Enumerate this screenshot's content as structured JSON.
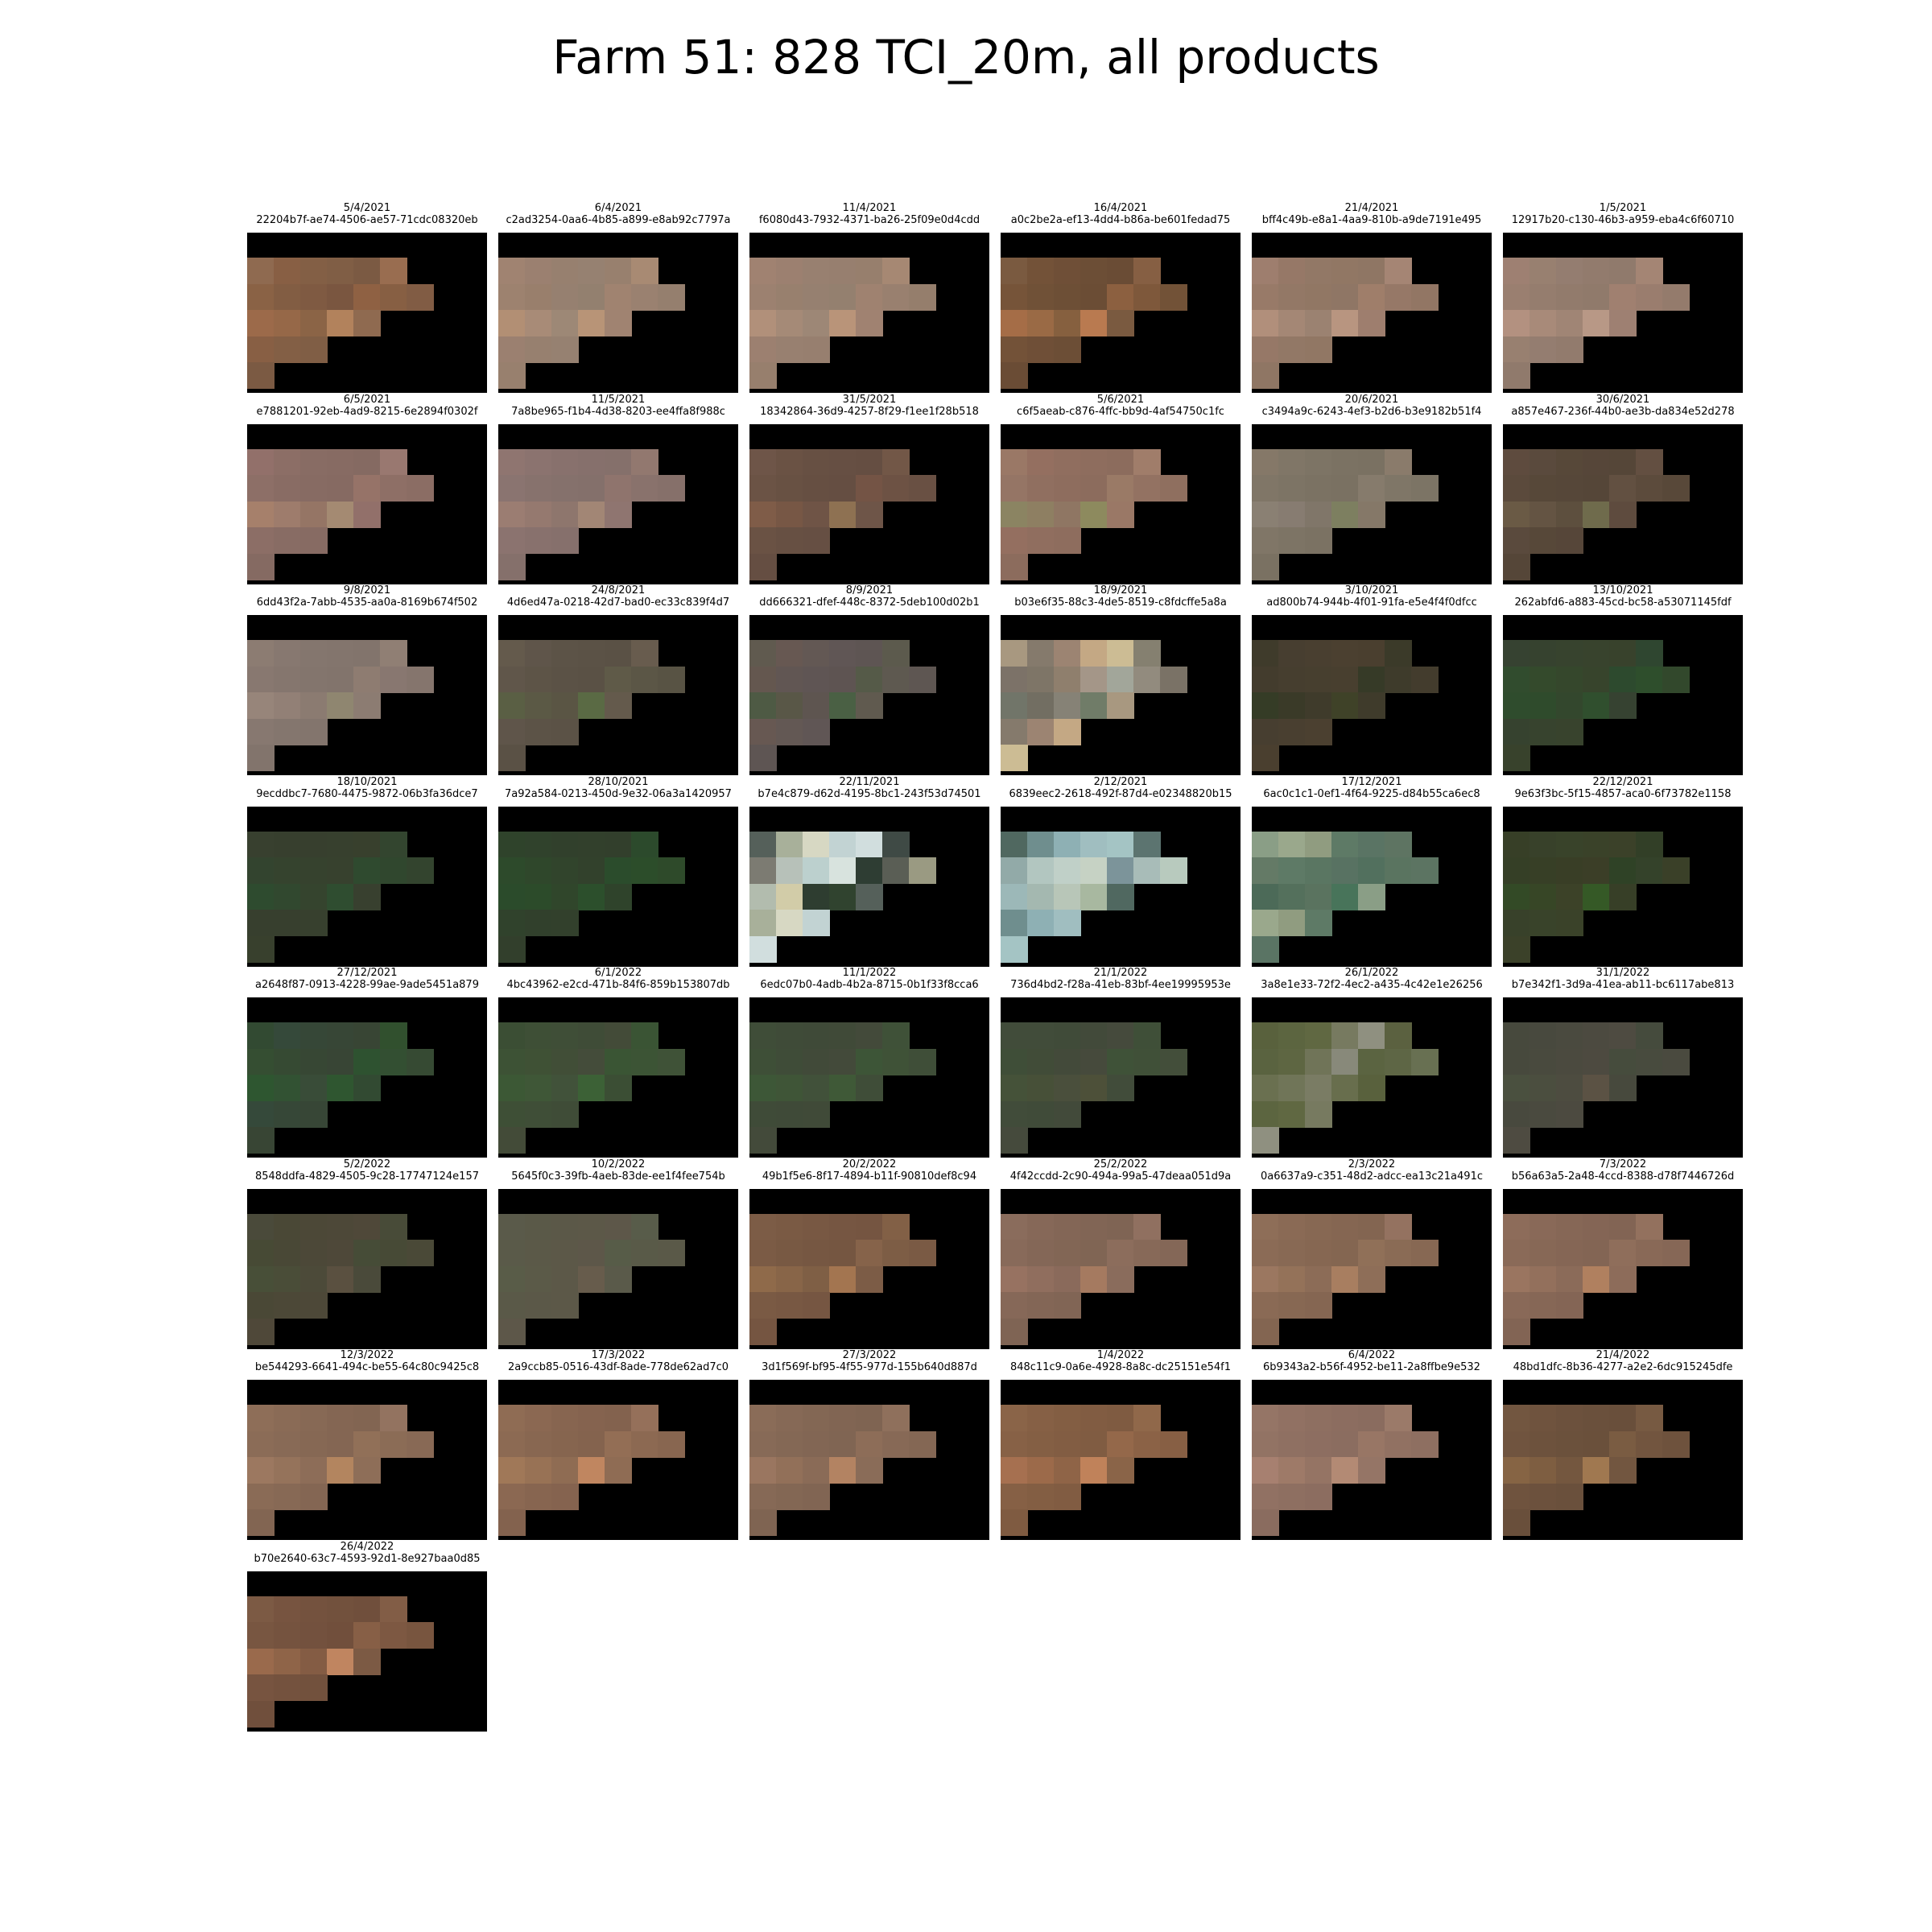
{
  "title": "Farm 51: 828 TCI_20m, all products",
  "products": [
    {
      "date": "5/4/2021",
      "id": "22204b7f-ae74-4506-ae57-71cdc08320eb",
      "colors": [
        "#8f6a50",
        "#885f44",
        "#835f45",
        "#805e45",
        "#7b5a43",
        "#996d50",
        "#8a6245",
        "#825d43",
        "#7f5a42",
        "#7a5640",
        "#8f6143",
        "#875f43",
        "#815c44",
        "#9c6a4a",
        "#966848",
        "#8b6446",
        "#b2825c"
      ]
    },
    {
      "date": "6/4/2021",
      "id": "c2ad3254-0aa6-4b85-a899-e8ab92c7797a",
      "colors": [
        "#a08371",
        "#9b8070",
        "#97806f",
        "#968171",
        "#98806e",
        "#a88a73",
        "#9d826f",
        "#997f6c",
        "#968070",
        "#93806f",
        "#a08370",
        "#9a8170",
        "#957f6e",
        "#b28f74",
        "#a88b77",
        "#9d8876",
        "#b89477"
      ]
    },
    {
      "date": "11/4/2021",
      "id": "f6080d43-7932-4371-ba26-25f09e0d4cdd",
      "colors": [
        "#a08271",
        "#9c8070",
        "#988070",
        "#977f6f",
        "#977f6d",
        "#a68873",
        "#9c8170",
        "#98806e",
        "#968070",
        "#94806f",
        "#9f8270",
        "#99806f",
        "#957e6c",
        "#b1907a",
        "#a58a77",
        "#9d8776",
        "#b99479"
      ]
    },
    {
      "date": "16/4/2021",
      "id": "a0c2be2a-ef13-4dd4-b86a-be601fedad75",
      "colors": [
        "#7a5a40",
        "#735238",
        "#6f4f37",
        "#6c4e36",
        "#6a4c35",
        "#865f43",
        "#765439",
        "#705137",
        "#6d4f36",
        "#6b4d35",
        "#8c6040",
        "#7e583b",
        "#725237",
        "#a56d47",
        "#9a6a45",
        "#86603f",
        "#b97a50"
      ]
    },
    {
      "date": "21/4/2021",
      "id": "bff4c49b-e8a1-4aa9-810b-a9de7191e495",
      "colors": [
        "#9e7e6e",
        "#967867",
        "#927866",
        "#917764",
        "#8f7664",
        "#a58574",
        "#987a68",
        "#937866",
        "#917764",
        "#8f7665",
        "#9f7e6a",
        "#967867",
        "#927664",
        "#b18f7b",
        "#a48775",
        "#9b8271",
        "#b89580"
      ]
    },
    {
      "date": "1/5/2021",
      "id": "12917b20-c130-46b3-a959-eba4c6f60710",
      "colors": [
        "#9e8072",
        "#988070",
        "#947d70",
        "#927b6d",
        "#907a6c",
        "#a48574",
        "#9a7f70",
        "#957d6e",
        "#927b6c",
        "#907a6b",
        "#a08070",
        "#9a7d6e",
        "#947b6c",
        "#b39180",
        "#a88a79",
        "#a08575",
        "#b89886"
      ]
    },
    {
      "date": "6/5/2021",
      "id": "e7881201-92eb-4ad9-8215-6e2894f0302f",
      "colors": [
        "#92706a",
        "#8c6e66",
        "#886c64",
        "#876b63",
        "#856a62",
        "#997870",
        "#8d6f67",
        "#896c64",
        "#876b63",
        "#866a62",
        "#967368",
        "#8e6f66",
        "#8b6d64",
        "#a6806b",
        "#9e7c6c",
        "#957565",
        "#a48a72"
      ]
    },
    {
      "date": "11/5/2021",
      "id": "7a8be965-f1b4-4d38-8203-ee4ffa8f988c",
      "colors": [
        "#8f7570",
        "#8b736f",
        "#88716d",
        "#86706c",
        "#85706b",
        "#92786f",
        "#8a7470",
        "#87726d",
        "#85716c",
        "#84706b",
        "#8f746d",
        "#89726c",
        "#86706a",
        "#9b7d72",
        "#95796f",
        "#8e766d",
        "#a28675"
      ]
    },
    {
      "date": "31/5/2021",
      "id": "18342864-36d9-4257-8f29-f1ee1f28b518",
      "colors": [
        "#6e5548",
        "#6a5244",
        "#675043",
        "#664f43",
        "#654e42",
        "#725747",
        "#6b5345",
        "#685143",
        "#664f42",
        "#654e42",
        "#745445",
        "#6d5244",
        "#695043",
        "#7f5c48",
        "#775745",
        "#6f5446",
        "#8e7152"
      ]
    },
    {
      "date": "5/6/2021",
      "id": "c6f5aeab-c876-4ffc-bb9d-4af54750c1fc",
      "colors": [
        "#9a7866",
        "#946f60",
        "#906e5f",
        "#8e6d5e",
        "#8c6c5d",
        "#a07d6a",
        "#957565",
        "#906f60",
        "#8e6d5e",
        "#8c6c5d",
        "#9a7a66",
        "#937262",
        "#8f6f5f",
        "#8b8462",
        "#8e7f62",
        "#8f7663",
        "#8d8a5e"
      ]
    },
    {
      "date": "20/6/2021",
      "id": "c3494a9c-6243-4ef3-b2d6-b3e9182b51f4",
      "colors": [
        "#857868",
        "#807667",
        "#7d7465",
        "#7b7263",
        "#7a7162",
        "#8a7b6b",
        "#807667",
        "#7d7465",
        "#7b7263",
        "#7a7162",
        "#867b6c",
        "#7f7667",
        "#7c7465",
        "#8a8073",
        "#877c71",
        "#807669",
        "#7d7f60"
      ]
    },
    {
      "date": "30/6/2021",
      "id": "a857e467-236f-44b0-ae3b-da834e52d278",
      "colors": [
        "#5e4b3e",
        "#5a4a3d",
        "#574839",
        "#564639",
        "#554638",
        "#634f41",
        "#5b4a3c",
        "#574839",
        "#564739",
        "#554638",
        "#625041",
        "#5c4b3c",
        "#584839",
        "#6a5a45",
        "#645443",
        "#5d4f3e",
        "#6f6b4c"
      ]
    },
    {
      "date": "9/8/2021",
      "id": "6dd43f2a-7abb-4535-aa0a-8169b674f502",
      "colors": [
        "#8c7c72",
        "#877870",
        "#84766e",
        "#83756d",
        "#82746c",
        "#907f74",
        "#887870",
        "#85766e",
        "#83756d",
        "#82746c",
        "#8e7c71",
        "#887770",
        "#85756d",
        "#97857a",
        "#928076",
        "#8b7b71",
        "#8f8670"
      ]
    },
    {
      "date": "24/8/2021",
      "id": "4d6ed47a-0218-42d7-bad0-ec33c839f4d7",
      "colors": [
        "#645a4c",
        "#5f554a",
        "#5c5347",
        "#5b5246",
        "#5a5145",
        "#685c4e",
        "#60564a",
        "#5d5447",
        "#5b5246",
        "#5a5145",
        "#5f5a48",
        "#5b5646",
        "#585344",
        "#5a5f44",
        "#5b5945",
        "#5a5544",
        "#5a6a44"
      ]
    },
    {
      "date": "8/9/2021",
      "id": "dd666321-dfef-448c-8372-5deb100d02b1",
      "colors": [
        "#605a4f",
        "#675852",
        "#635854",
        "#605655",
        "#5e5553",
        "#5c5a4d",
        "#64574f",
        "#615653",
        "#5f5554",
        "#5e5452",
        "#555a48",
        "#5e5950",
        "#5e5652",
        "#4e5a44",
        "#595747",
        "#5e5550",
        "#4a6044"
      ]
    },
    {
      "date": "18/9/2021",
      "id": "b03e6f35-88c3-4de5-8519-c8fdcffe5a8a",
      "colors": [
        "#a89880",
        "#857a6c",
        "#9c8472",
        "#c4a884",
        "#ccbc94",
        "#858070",
        "#7c7268",
        "#7e7567",
        "#8f7f6d",
        "#a49688",
        "#a2a69a",
        "#928b7e",
        "#7a7266",
        "#717569",
        "#726e62",
        "#868276",
        "#707c68"
      ]
    },
    {
      "date": "3/10/2021",
      "id": "ad800b74-944b-4f01-91fa-e5e4f4f0dfcc",
      "colors": [
        "#3f3b2b",
        "#473e30",
        "#493f30",
        "#4b4030",
        "#4a3f2f",
        "#3b3a29",
        "#433c2d",
        "#463e2f",
        "#473f2f",
        "#483f2f",
        "#363a27",
        "#3e3b2b",
        "#433c2d",
        "#353c26",
        "#3a3a28",
        "#3f3b2b",
        "#3f4228"
      ]
    },
    {
      "date": "13/10/2021",
      "id": "262abfd6-a883-45cd-bc58-a53071145fdf",
      "colors": [
        "#364231",
        "#36422f",
        "#37432e",
        "#38432d",
        "#38422c",
        "#2f4630",
        "#314c2e",
        "#344a2c",
        "#35472c",
        "#37442c",
        "#2d4a2e",
        "#2e4e2c",
        "#32482c",
        "#2f4c2d",
        "#2f4b2c",
        "#33472d",
        "#304f2e"
      ]
    },
    {
      "date": "18/10/2021",
      "id": "9ecddbc7-7680-4475-9872-06b3fa36dce7",
      "colors": [
        "#38402f",
        "#373f2e",
        "#373f2e",
        "#37402e",
        "#38402d",
        "#33452f",
        "#33442f",
        "#35432e",
        "#36422e",
        "#37412e",
        "#2f4a2f",
        "#30472e",
        "#33442e",
        "#2e4b2f",
        "#31482f",
        "#35442e",
        "#2f4d30"
      ]
    },
    {
      "date": "28/10/2021",
      "id": "7a92a584-0213-450d-9e32-06a3a1420957",
      "colors": [
        "#2f432b",
        "#30422c",
        "#31402c",
        "#32402c",
        "#323f2c",
        "#2c4a2c",
        "#2d4a2b",
        "#2f472b",
        "#31442c",
        "#32412c",
        "#2b4c2c",
        "#2c4d2a",
        "#2e4a2a",
        "#2b4b2b",
        "#2c4b2a",
        "#30462b",
        "#2c4f2c"
      ]
    },
    {
      "date": "22/11/2021",
      "id": "b7e4c879-d62d-4195-8bc1-243f53d74501",
      "colors": [
        "#55605a",
        "#a8b09a",
        "#d7d8c3",
        "#c2d3d3",
        "#d1dede",
        "#3f4a45",
        "#7c7b72",
        "#b7c1b9",
        "#bcd0ce",
        "#d8e3de",
        "#2e3d33",
        "#5a5e55",
        "#9a9a82",
        "#b2bcae",
        "#d2cca8",
        "#2e3d30",
        "#30432f"
      ]
    },
    {
      "date": "2/12/2021",
      "id": "6839eec2-2618-492f-87d4-e02348820b15",
      "colors": [
        "#506860",
        "#6f8e8e",
        "#8eb0b4",
        "#a0bec0",
        "#a4c4c4",
        "#5c7470",
        "#92aaa8",
        "#b2c6c0",
        "#c0d0c8",
        "#c6d2c4",
        "#7c949a",
        "#a8bcb8",
        "#b8cabe",
        "#9cb8b8",
        "#a4b8b0",
        "#b8c6b8",
        "#a8b8a0"
      ]
    },
    {
      "date": "17/12/2021",
      "id": "6ac0c1c1-0ef1-4f64-9225-d84b55ca6ec8",
      "colors": [
        "#8a9e86",
        "#9aa88c",
        "#909c80",
        "#5e7a66",
        "#5a7464",
        "#5e7462",
        "#647a66",
        "#5e7a66",
        "#5a7662",
        "#587262",
        "#52705e",
        "#5a7460",
        "#5c7462",
        "#4c6a58",
        "#54705c",
        "#5a735f",
        "#48745a"
      ]
    },
    {
      "date": "22/12/2021",
      "id": "9e63f3bc-5f15-4857-aca0-6f73782e1158",
      "colors": [
        "#373f27",
        "#38412a",
        "#39432a",
        "#3a4229",
        "#3b4129",
        "#323f27",
        "#353f26",
        "#373f26",
        "#393e26",
        "#3b3e27",
        "#2f4226",
        "#34422a",
        "#3a4028",
        "#334a26",
        "#374626",
        "#3c4228",
        "#355926"
      ]
    },
    {
      "date": "27/12/2021",
      "id": "a2648f87-0913-4228-99ae-9ade5451a879",
      "colors": [
        "#324a32",
        "#35493a",
        "#364737",
        "#374636",
        "#384534",
        "#31502e",
        "#354e32",
        "#364a33",
        "#374734",
        "#384535",
        "#2e5230",
        "#334f32",
        "#364a33",
        "#2e5630",
        "#325233",
        "#394c38",
        "#2f5630"
      ]
    },
    {
      "date": "6/1/2022",
      "id": "4bc43962-e2cd-471b-84f6-859b153807db",
      "colors": [
        "#3b4e34",
        "#3e4f36",
        "#3f4e37",
        "#3f4c37",
        "#434b38",
        "#3a5434",
        "#3d5235",
        "#3f5135",
        "#414e37",
        "#444c3a",
        "#3a5534",
        "#3c5435",
        "#3f5237",
        "#3c5835",
        "#3f5737",
        "#41523a",
        "#3c6136"
      ]
    },
    {
      "date": "11/1/2022",
      "id": "6edc07b0-4adb-4b2a-8715-0b1f33f8cca6",
      "colors": [
        "#3f4d38",
        "#3f4b38",
        "#3f4a38",
        "#404a38",
        "#434a3a",
        "#3f5138",
        "#3e4f37",
        "#3f4c38",
        "#414a39",
        "#434a3a",
        "#3d5537",
        "#3f5237",
        "#3f4e38",
        "#3d5737",
        "#3f5537",
        "#41513a",
        "#3f5937"
      ]
    },
    {
      "date": "21/1/2022",
      "id": "736d4bd2-f28a-41eb-83bf-4ee19995953e",
      "colors": [
        "#414c3a",
        "#414c3a",
        "#404b39",
        "#424a3a",
        "#454a3c",
        "#3f4f38",
        "#3f4e38",
        "#414c38",
        "#434a3a",
        "#464a3c",
        "#3f5238",
        "#405038",
        "#434e3a",
        "#455239",
        "#475038",
        "#4a4f3c",
        "#4d5039"
      ]
    },
    {
      "date": "26/1/2022",
      "id": "3a8e1e33-72f2-4ec2-a435-4c42e1e26256",
      "colors": [
        "#59613d",
        "#5c6540",
        "#606842",
        "#777a60",
        "#8f9080",
        "#5b6140",
        "#5a6340",
        "#5e6642",
        "#707458",
        "#88897a",
        "#5b6441",
        "#5e6645",
        "#687052",
        "#6a7050",
        "#707558",
        "#7a7c64",
        "#686e4d"
      ]
    },
    {
      "date": "31/1/2022",
      "id": "b7e342f1-3d9a-41ea-ab11-bc6117abe813",
      "colors": [
        "#47493d",
        "#48493e",
        "#4a4a3f",
        "#4c4a40",
        "#4e4b41",
        "#454b3d",
        "#47493d",
        "#494a3e",
        "#4b4a3f",
        "#4d4a40",
        "#464c3d",
        "#484b3e",
        "#4a4a3f",
        "#4a503f",
        "#4b4e3f",
        "#4d4c40",
        "#5b5244"
      ]
    },
    {
      "date": "5/2/2022",
      "id": "8548ddfa-4829-4505-9c28-17747124e157",
      "colors": [
        "#4a4a3a",
        "#4a4836",
        "#4c4837",
        "#4d4838",
        "#4f4839",
        "#484b38",
        "#474a35",
        "#494836",
        "#4c4838",
        "#4e4839",
        "#464c37",
        "#474a36",
        "#4a4937",
        "#484f38",
        "#4a4d38",
        "#4c4a39",
        "#5a5040"
      ]
    },
    {
      "date": "10/2/2022",
      "id": "5645f0c3-39fb-4aeb-83de-ee1f4fee754b",
      "colors": [
        "#5a5a4a",
        "#5a5948",
        "#5b5848",
        "#5c5848",
        "#5d5749",
        "#585c4a",
        "#5a5a49",
        "#5b5948",
        "#5c5848",
        "#5d5749",
        "#575c48",
        "#595a48",
        "#5a5948",
        "#595c48",
        "#5b5a48",
        "#5c5848",
        "#675c4c"
      ]
    },
    {
      "date": "20/2/2022",
      "id": "49b1f5e6-8f17-4894-b11f-90810def8c94",
      "colors": [
        "#7c5c46",
        "#7a5a44",
        "#785843",
        "#765642",
        "#755541",
        "#826046",
        "#7b5b45",
        "#785943",
        "#765742",
        "#755641",
        "#86634a",
        "#7d5d45",
        "#7a5a44",
        "#8f6a4a",
        "#886548",
        "#7f5f45",
        "#a37550"
      ]
    },
    {
      "date": "25/2/2022",
      "id": "4f42ccdd-2c90-494a-99a5-47deaa051d9a",
      "colors": [
        "#8a6c5c",
        "#866858",
        "#836656",
        "#816555",
        "#7f6454",
        "#907060",
        "#886a5a",
        "#846757",
        "#826655",
        "#806554",
        "#8c6d5c",
        "#876958",
        "#846757",
        "#977261",
        "#906e5e",
        "#8a6a5b",
        "#a57a60"
      ]
    },
    {
      "date": "2/3/2022",
      "id": "0a6637a9-c351-48d2-adcc-ea13c21a491c",
      "colors": [
        "#8e6e58",
        "#8a6a55",
        "#876853",
        "#856652",
        "#836551",
        "#947260",
        "#8b6b56",
        "#886954",
        "#866752",
        "#846651",
        "#907058",
        "#8a6b55",
        "#876853",
        "#9b7760",
        "#947259",
        "#8c6c57",
        "#a87e60"
      ]
    },
    {
      "date": "7/3/2022",
      "id": "b56a63a5-2a48-4ccd-8388-d78f7446726d",
      "colors": [
        "#8d6c5a",
        "#896958",
        "#866756",
        "#846555",
        "#826454",
        "#93715e",
        "#8a6a58",
        "#876856",
        "#856655",
        "#836554",
        "#8f6e5b",
        "#896957",
        "#866756",
        "#9a7560",
        "#93705c",
        "#8b6b59",
        "#b0805f"
      ]
    },
    {
      "date": "12/3/2022",
      "id": "be544293-6641-494c-be55-64c80c9425c8",
      "colors": [
        "#8e6e58",
        "#8a6b56",
        "#876955",
        "#846653",
        "#826552",
        "#937360",
        "#8b6c57",
        "#886a56",
        "#866854",
        "#846653",
        "#917058",
        "#8b6c56",
        "#886955",
        "#9c7860",
        "#95735b",
        "#8d6d58",
        "#b3855f"
      ]
    },
    {
      "date": "17/3/2022",
      "id": "2a9ccb85-0516-43df-8ade-778de62ad7c0",
      "colors": [
        "#8f6c54",
        "#8b6852",
        "#876550",
        "#85634f",
        "#83624e",
        "#95705a",
        "#8c6a53",
        "#886751",
        "#86654f",
        "#84634e",
        "#936e55",
        "#8c6952",
        "#886650",
        "#a07858",
        "#987255",
        "#8f6c53",
        "#c08660"
      ]
    },
    {
      "date": "27/3/2022",
      "id": "3d1f569f-bf95-4f55-977d-155b640d887d",
      "colors": [
        "#8a6c58",
        "#866956",
        "#836754",
        "#816553",
        "#7f6452",
        "#8f705c",
        "#876a57",
        "#846855",
        "#826654",
        "#806553",
        "#8d6d58",
        "#876956",
        "#846754",
        "#9a7660",
        "#927059",
        "#8a6b57",
        "#b38362"
      ]
    },
    {
      "date": "1/4/2022",
      "id": "848c11c9-0a6e-4928-8a8c-dc25151e54f1",
      "colors": [
        "#8a6448",
        "#866045",
        "#835e43",
        "#815c42",
        "#7f5b41",
        "#90684a",
        "#876146",
        "#845f44",
        "#825d43",
        "#805c42",
        "#94684a",
        "#8b6246",
        "#875f44",
        "#a67050",
        "#9c6a4a",
        "#8f6447",
        "#c0825a"
      ]
    },
    {
      "date": "6/4/2022",
      "id": "6b9343a2-b56f-4952-be11-2a8ffbe9e532",
      "colors": [
        "#957566",
        "#917163",
        "#8e6f61",
        "#8c6d60",
        "#8a6c5f",
        "#9b7a69",
        "#927364",
        "#8f7062",
        "#8d6e61",
        "#8b6d60",
        "#987665",
        "#917162",
        "#8e6f61",
        "#a78070",
        "#9e7a68",
        "#957464",
        "#b38a74"
      ]
    },
    {
      "date": "21/4/2022",
      "id": "48bd1dfc-8b36-4277-a2e2-6dc915245dfe",
      "colors": [
        "#725640",
        "#6f533e",
        "#6c513d",
        "#6a503c",
        "#694f3b",
        "#775a42",
        "#70543f",
        "#6d523d",
        "#6b513c",
        "#6a503b",
        "#7a5c42",
        "#72553f",
        "#6e523d",
        "#866444",
        "#7e5e41",
        "#74573f",
        "#a07850"
      ]
    },
    {
      "date": "26/4/2022",
      "id": "b70e2640-63c7-4593-92d1-8e927baa0d85",
      "colors": [
        "#7c5a44",
        "#775440",
        "#74523e",
        "#72513d",
        "#704f3c",
        "#825d46",
        "#785641",
        "#75533f",
        "#73513e",
        "#714f3c",
        "#875f46",
        "#7d5842",
        "#78553f",
        "#9a6a4c",
        "#8f6448",
        "#845c44",
        "#c08560"
      ]
    }
  ]
}
